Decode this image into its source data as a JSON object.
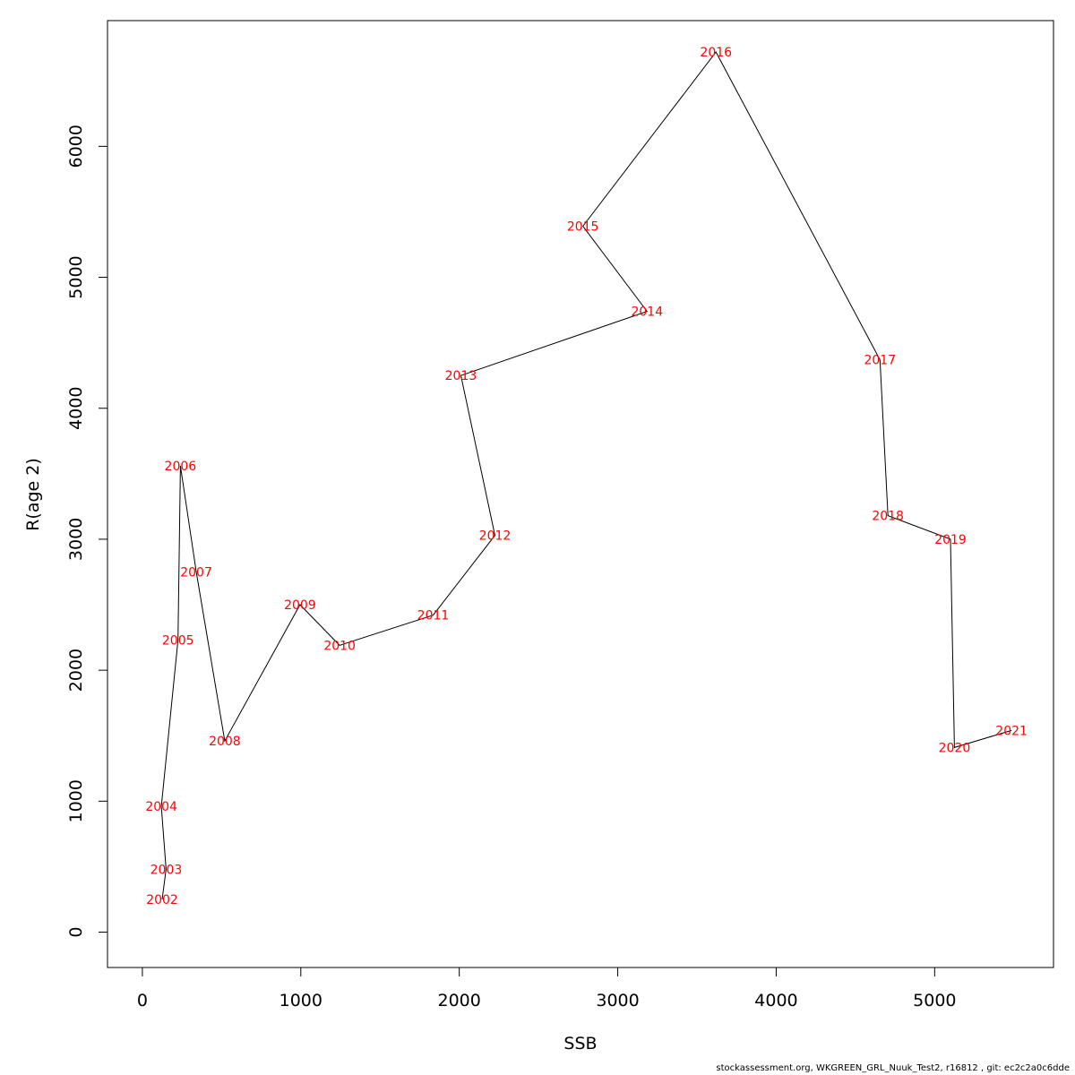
{
  "chart_data": {
    "type": "line",
    "xlabel": "SSB",
    "ylabel": "R(age 2)",
    "xlim": [
      -220,
      5750
    ],
    "ylim": [
      -270,
      6960
    ],
    "xticks": [
      0,
      1000,
      2000,
      3000,
      4000,
      5000
    ],
    "yticks": [
      0,
      1000,
      2000,
      3000,
      4000,
      5000,
      6000
    ],
    "grid": false,
    "legend": "none",
    "line_color": "#000000",
    "label_color": "#ff0000",
    "points": [
      {
        "label": "2002",
        "x": 125,
        "y": 250
      },
      {
        "label": "2003",
        "x": 150,
        "y": 480
      },
      {
        "label": "2004",
        "x": 120,
        "y": 960
      },
      {
        "label": "2005",
        "x": 225,
        "y": 2230
      },
      {
        "label": "2006",
        "x": 240,
        "y": 3560
      },
      {
        "label": "2007",
        "x": 340,
        "y": 2750
      },
      {
        "label": "2008",
        "x": 520,
        "y": 1460
      },
      {
        "label": "2009",
        "x": 995,
        "y": 2500
      },
      {
        "label": "2010",
        "x": 1245,
        "y": 2190
      },
      {
        "label": "2011",
        "x": 1835,
        "y": 2420
      },
      {
        "label": "2012",
        "x": 2225,
        "y": 3030
      },
      {
        "label": "2013",
        "x": 2010,
        "y": 4250
      },
      {
        "label": "2014",
        "x": 3185,
        "y": 4740
      },
      {
        "label": "2015",
        "x": 2780,
        "y": 5390
      },
      {
        "label": "2016",
        "x": 3620,
        "y": 6720
      },
      {
        "label": "2017",
        "x": 4655,
        "y": 4370
      },
      {
        "label": "2018",
        "x": 4705,
        "y": 3180
      },
      {
        "label": "2019",
        "x": 5100,
        "y": 3000
      },
      {
        "label": "2020",
        "x": 5125,
        "y": 1410
      },
      {
        "label": "2021",
        "x": 5485,
        "y": 1540
      }
    ]
  },
  "footer": "stockassessment.org, WKGREEN_GRL_Nuuk_Test2, r16812 , git: ec2c2a0c6dde"
}
